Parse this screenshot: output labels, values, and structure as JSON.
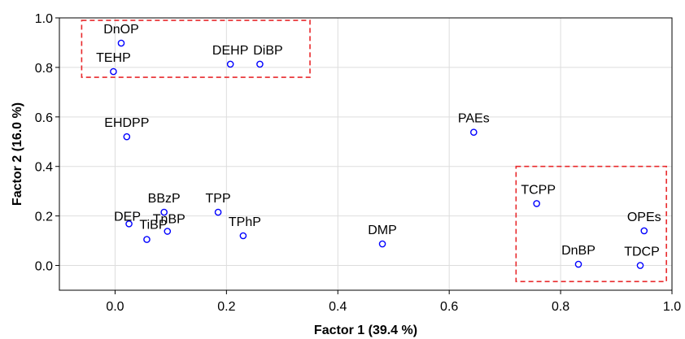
{
  "chart_data": {
    "type": "scatter",
    "title": "",
    "xlabel": "Factor 1 (39.4 %)",
    "ylabel": "Factor 2 (16.0 %)",
    "xlim": [
      -0.1,
      1.0
    ],
    "ylim": [
      -0.1,
      1.0
    ],
    "xticks": [
      "0.0",
      "0.2",
      "0.4",
      "0.6",
      "0.8",
      "1.0"
    ],
    "yticks": [
      "0.0",
      "0.2",
      "0.4",
      "0.6",
      "0.8",
      "1.0"
    ],
    "grid": true,
    "marker_color": "#0000ff",
    "box_color": "#e8282b",
    "points": [
      {
        "label": "DnOP",
        "x": 0.011,
        "y": 0.898
      },
      {
        "label": "TEHP",
        "x": -0.003,
        "y": 0.783
      },
      {
        "label": "DEHP",
        "x": 0.207,
        "y": 0.813
      },
      {
        "label": "DiBP",
        "x": 0.26,
        "y": 0.813
      },
      {
        "label": "EHDPP",
        "x": 0.021,
        "y": 0.52
      },
      {
        "label": "PAEs",
        "x": 0.644,
        "y": 0.538
      },
      {
        "label": "BBzP",
        "x": 0.088,
        "y": 0.215
      },
      {
        "label": "DEP",
        "x": 0.025,
        "y": 0.168
      },
      {
        "label": "TiBP",
        "x": 0.057,
        "y": 0.105
      },
      {
        "label": "TnBP",
        "x": 0.094,
        "y": 0.138
      },
      {
        "label": "TPP",
        "x": 0.185,
        "y": 0.215
      },
      {
        "label": "TPhP",
        "x": 0.23,
        "y": 0.12
      },
      {
        "label": "DMP",
        "x": 0.48,
        "y": 0.087
      },
      {
        "label": "TCPP",
        "x": 0.757,
        "y": 0.25
      },
      {
        "label": "OPEs",
        "x": 0.95,
        "y": 0.14
      },
      {
        "label": "DnBP",
        "x": 0.832,
        "y": 0.005
      },
      {
        "label": "TDCP",
        "x": 0.943,
        "y": 0.0
      }
    ],
    "boxes": [
      {
        "x0": -0.06,
        "x1": 0.35,
        "y0": 0.76,
        "y1": 0.99
      },
      {
        "x0": 0.72,
        "x1": 0.99,
        "y0": -0.065,
        "y1": 0.4
      }
    ]
  }
}
